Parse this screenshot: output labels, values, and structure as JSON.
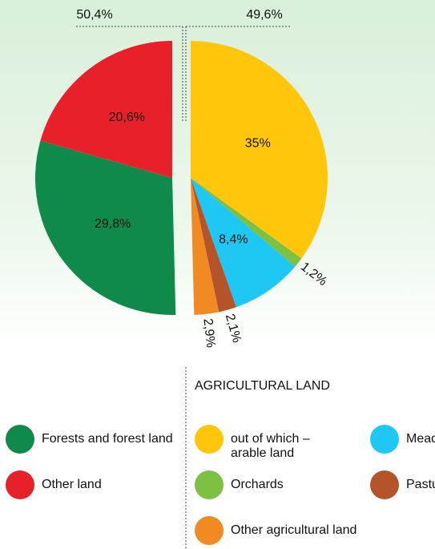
{
  "chart_data": {
    "type": "pie",
    "groups": [
      {
        "value": 50.4,
        "value_label": "50,4%",
        "categories": [
          "Forests and forest land",
          "Other land"
        ],
        "values": [
          29.8,
          20.6
        ],
        "value_labels": [
          "29,8%",
          "20,6%"
        ],
        "colors": [
          "#0f8a4a",
          "#e8202a"
        ]
      },
      {
        "name": "AGRICULTURAL LAND",
        "value": 49.6,
        "value_label": "49,6%",
        "categories": [
          "out of which –arable land",
          "Orchards",
          "Meadows",
          "Pastures",
          "Other agricultural land"
        ],
        "values": [
          35,
          1.2,
          8.4,
          2.1,
          2.9
        ],
        "value_labels": [
          "35%",
          "1,2%",
          "8,4%",
          "2,1%",
          "2,9%"
        ],
        "colors": [
          "#ffc60b",
          "#7cc142",
          "#1ec8f2",
          "#b5532b",
          "#f28a24"
        ]
      }
    ]
  }
}
